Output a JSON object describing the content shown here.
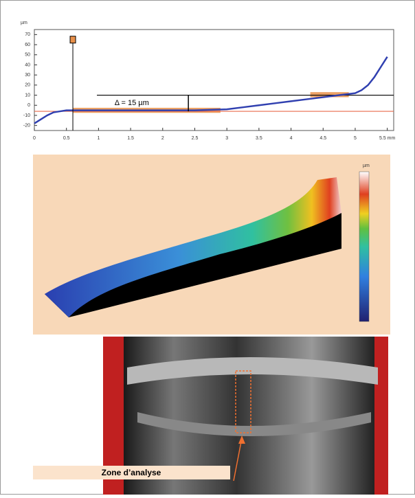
{
  "chart_data": {
    "type": "line",
    "y_label": "µm",
    "x": [
      0,
      0.1,
      0.2,
      0.3,
      0.4,
      0.5,
      0.75,
      1,
      1.5,
      2,
      2.5,
      3,
      3.25,
      3.5,
      3.75,
      4,
      4.25,
      4.5,
      4.75,
      5,
      5.1,
      5.2,
      5.3,
      5.4,
      5.5
    ],
    "values": [
      -18,
      -14,
      -10,
      -7,
      -6,
      -5,
      -5,
      -5,
      -5,
      -5,
      -5,
      -4,
      -2,
      0,
      2,
      4,
      6,
      8,
      10,
      12,
      15,
      20,
      28,
      38,
      48
    ],
    "color": "#3040b0",
    "xlim": [
      0,
      5.6
    ],
    "ylim": [
      -25,
      75
    ],
    "xticks": [
      0,
      0.5,
      1,
      1.5,
      2,
      2.5,
      3,
      3.5,
      4,
      4.5,
      5,
      {
        "value": 5.5,
        "label": "5.5 mm"
      }
    ],
    "yticks": [
      -20,
      -10,
      0,
      10,
      20,
      30,
      40,
      50,
      60,
      70
    ],
    "reference_lines": [
      {
        "value": -6,
        "color": "#e86a4a"
      },
      {
        "value": 10,
        "color": "#000000"
      }
    ],
    "highlights": [
      {
        "x": [
          0.6,
          2.9
        ],
        "y": [
          -7.5,
          -2.5
        ],
        "color": "#e8904a"
      },
      {
        "x": [
          4.3,
          4.9
        ],
        "y": [
          8,
          13
        ],
        "color": "#e8904a"
      }
    ],
    "marker": {
      "x": 0.6,
      "y": 65
    },
    "annotation": "Δ = 15 µm"
  },
  "surface": {
    "colorbar_label": "µm"
  },
  "photo": {
    "caption": "Zone d’analyse"
  }
}
